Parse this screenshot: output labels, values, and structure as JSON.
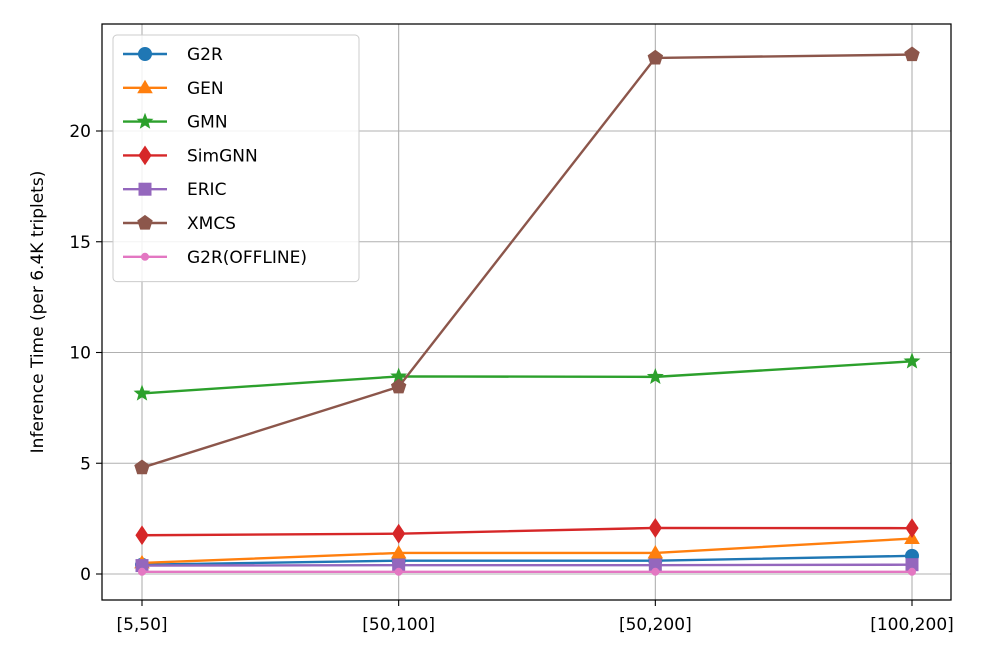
{
  "chart_data": {
    "type": "line",
    "categories": [
      "[5,50]",
      "[50,100]",
      "[50,200]",
      "[100,200]"
    ],
    "xlabel": "",
    "ylabel": "Inference Time (per 6.4K triplets)",
    "ylim": [
      -1.1,
      24.6
    ],
    "yticks": [
      0,
      5,
      10,
      15,
      20
    ],
    "grid": true,
    "legend_position": "top-left",
    "series": [
      {
        "name": "G2R",
        "color": "#1f77b4",
        "marker": "circle",
        "values": [
          0.42,
          0.6,
          0.6,
          0.82
        ]
      },
      {
        "name": "GEN",
        "color": "#ff7f0e",
        "marker": "triangle",
        "values": [
          0.5,
          0.95,
          0.95,
          1.6
        ]
      },
      {
        "name": "GMN",
        "color": "#2ca02c",
        "marker": "star",
        "values": [
          8.15,
          8.92,
          8.9,
          9.6
        ]
      },
      {
        "name": "SimGNN",
        "color": "#d62728",
        "marker": "diamond",
        "values": [
          1.75,
          1.82,
          2.08,
          2.07
        ]
      },
      {
        "name": "ERIC",
        "color": "#9467bd",
        "marker": "square",
        "values": [
          0.38,
          0.4,
          0.4,
          0.42
        ]
      },
      {
        "name": "XMCS",
        "color": "#8c564b",
        "marker": "pentagon",
        "values": [
          4.8,
          8.45,
          23.3,
          23.45
        ]
      },
      {
        "name": "G2R(OFFLINE)",
        "color": "#e377c2",
        "marker": "point",
        "values": [
          0.1,
          0.1,
          0.1,
          0.1
        ]
      }
    ]
  }
}
